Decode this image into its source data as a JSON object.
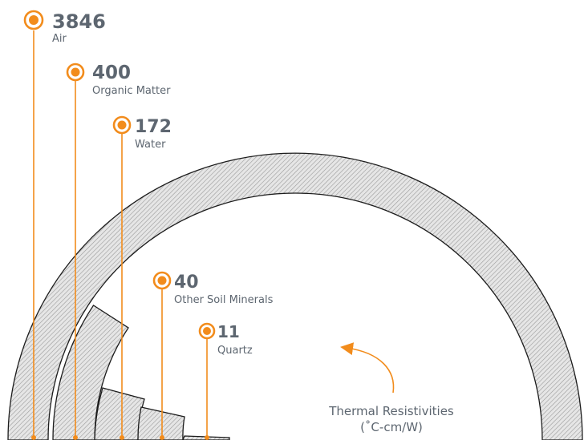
{
  "chart_data": {
    "type": "radial-bar",
    "units": "(˚C-cm/W)",
    "legend": "Thermal Resistivities",
    "items": [
      {
        "name": "Air",
        "value": 3846
      },
      {
        "name": "Organic Matter",
        "value": 400
      },
      {
        "name": "Water",
        "value": 172
      },
      {
        "name": "Other Soil Minerals",
        "value": 40
      },
      {
        "name": "Quartz",
        "value": 11
      }
    ]
  },
  "colors": {
    "accent": "#f28c1c",
    "text": "#5d6670",
    "outline": "#1c1c1c"
  }
}
